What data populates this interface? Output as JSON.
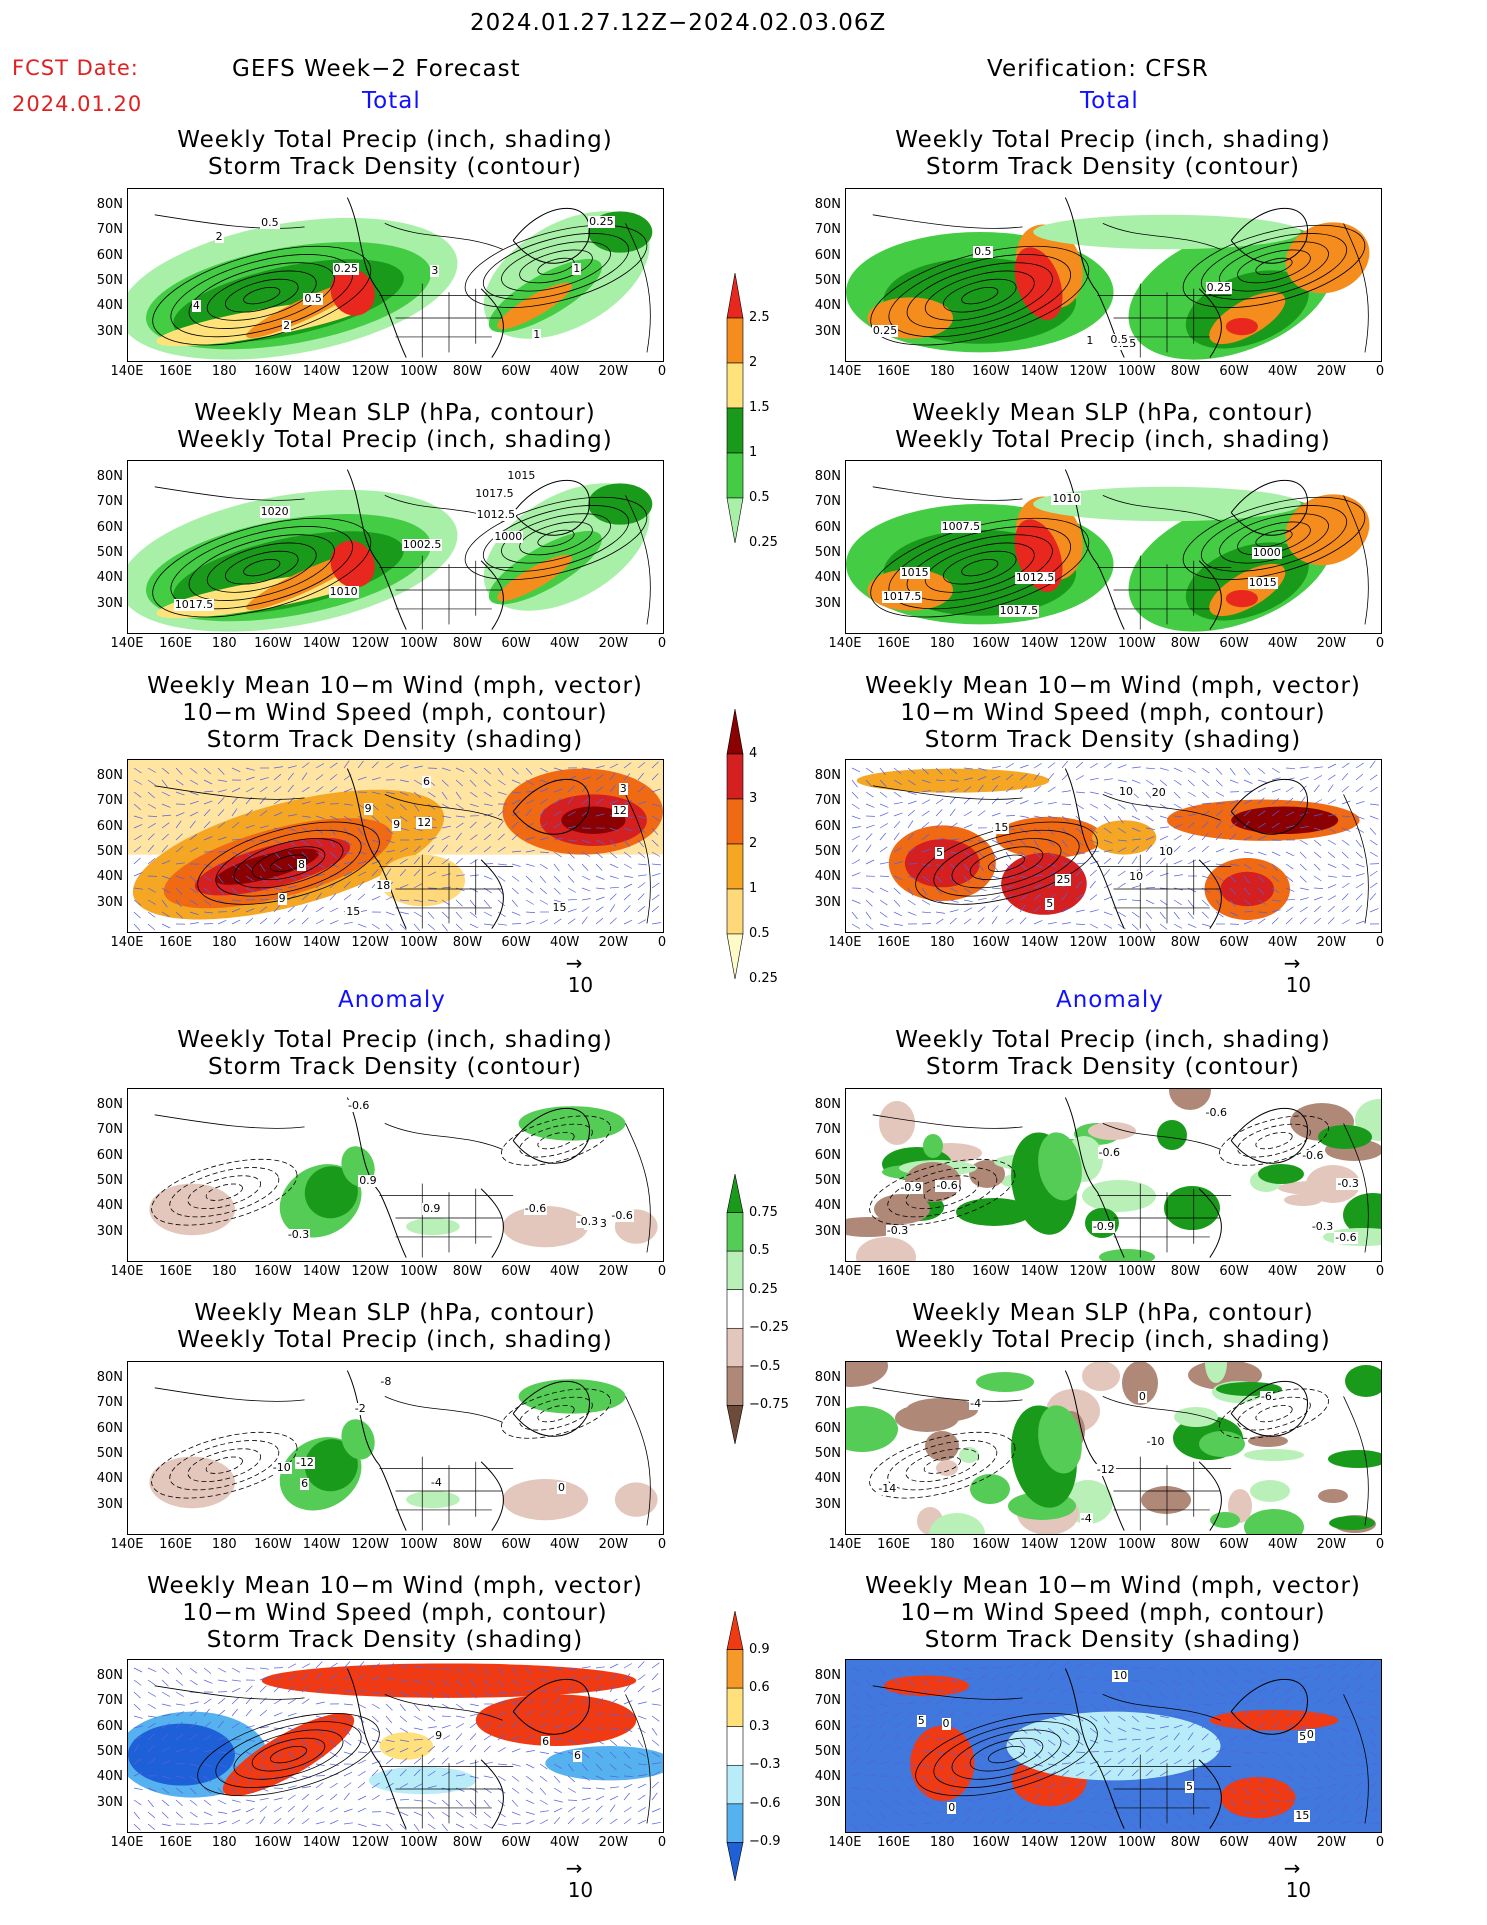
{
  "header": {
    "date_range": "2024.01.27.12Z−2024.02.03.06Z",
    "fcst_label": "FCST Date:",
    "fcst_date": "2024.01.20",
    "left_title": "GEFS Week−2 Forecast",
    "right_title": "Verification: CFSR"
  },
  "sections": {
    "total": "Total",
    "anomaly": "Anomaly"
  },
  "panel_titles": {
    "precip": [
      "Weekly Total Precip (inch, shading)",
      "Storm Track Density (contour)"
    ],
    "slp": [
      "Weekly Mean SLP (hPa, contour)",
      "Weekly Total Precip (inch, shading)"
    ],
    "wind": [
      "Weekly Mean 10−m Wind (mph, vector)",
      "10−m Wind Speed (mph, contour)",
      "Storm Track Density (shading)"
    ]
  },
  "axes": {
    "lat": [
      "80N",
      "70N",
      "60N",
      "50N",
      "40N",
      "30N"
    ],
    "lon": [
      "140E",
      "160E",
      "180",
      "160W",
      "140W",
      "120W",
      "100W",
      "80W",
      "60W",
      "40W",
      "20W",
      "0"
    ]
  },
  "vector_ref": "10",
  "colorbars": {
    "total_precip": {
      "labels": [
        "2.5",
        "2",
        "1.5",
        "1",
        "0.5",
        "0.25"
      ],
      "colors": [
        "#e8281e",
        "#f58c1e",
        "#ffe37a",
        "#1a9a1a",
        "#44cc44",
        "#a8f0a8"
      ]
    },
    "total_storm": {
      "labels": [
        "4",
        "3",
        "2",
        "1",
        "0.5",
        "0.25"
      ],
      "colors": [
        "#8b0000",
        "#d42020",
        "#f06a14",
        "#f5a623",
        "#ffd87a",
        "#fffbc8"
      ]
    },
    "anom_precip": {
      "labels": [
        "0.75",
        "0.5",
        "0.25",
        "−0.25",
        "−0.5",
        "−0.75"
      ],
      "colors": [
        "#1a9a1a",
        "#55cc55",
        "#b8f0b8",
        "#ffffff",
        "#e3c6bc",
        "#b08878",
        "#6e4a3a"
      ]
    },
    "anom_storm": {
      "labels": [
        "0.9",
        "0.6",
        "0.3",
        "−0.3",
        "−0.6",
        "−0.9"
      ],
      "colors": [
        "#f03a14",
        "#f59a28",
        "#ffe07a",
        "#ffffff",
        "#b8ecf8",
        "#56b2ee",
        "#1e60d8"
      ]
    }
  },
  "map_labels": {
    "gefs_precip": [
      "0.5",
      "1",
      "0.25",
      "1",
      "4",
      "2",
      "3",
      "2",
      "0.5",
      "0.25"
    ],
    "cfsr_precip": [
      "0.25",
      "1",
      "0.25",
      "0.5",
      "0.25",
      "0.5"
    ],
    "gefs_slp": [
      "1015",
      "1020",
      "1012.5",
      "1017.5",
      "1002.5",
      "1000",
      "1017.5",
      "1010"
    ],
    "cfsr_slp": [
      "1017.5",
      "1015",
      "1012.5",
      "1010",
      "1007.5",
      "1000",
      "1015",
      "1017.5"
    ],
    "gefs_wind": [
      "9",
      "6",
      "3",
      "12",
      "12",
      "8",
      "9",
      "18",
      "15",
      "9",
      "15"
    ],
    "cfsr_wind": [
      "10",
      "5",
      "10",
      "15",
      "20",
      "25",
      "10",
      "5"
    ],
    "gefs_aprecip": [
      "-0.6",
      "-0.3",
      "-0.3",
      "0.9",
      "-0.6",
      "-0.3",
      "-0.6",
      "0.9"
    ],
    "cfsr_aprecip": [
      "-0.9",
      "-0.6",
      "-0.6",
      "-0.6",
      "-0.3",
      "-0.6",
      "-0.3",
      "-0.9",
      "-0.6",
      "-0.3"
    ],
    "gefs_aslp": [
      "-12",
      "-10",
      "-4",
      "6",
      "0",
      "-8",
      "-2"
    ],
    "cfsr_aslp": [
      "-10",
      "-6",
      "-4",
      "-14",
      "-12",
      "0",
      "-4"
    ],
    "gefs_awind": [
      "6",
      "9",
      "6"
    ],
    "cfsr_awind": [
      "5",
      "0",
      "10",
      "15",
      "0",
      "0",
      "5",
      "5"
    ]
  }
}
